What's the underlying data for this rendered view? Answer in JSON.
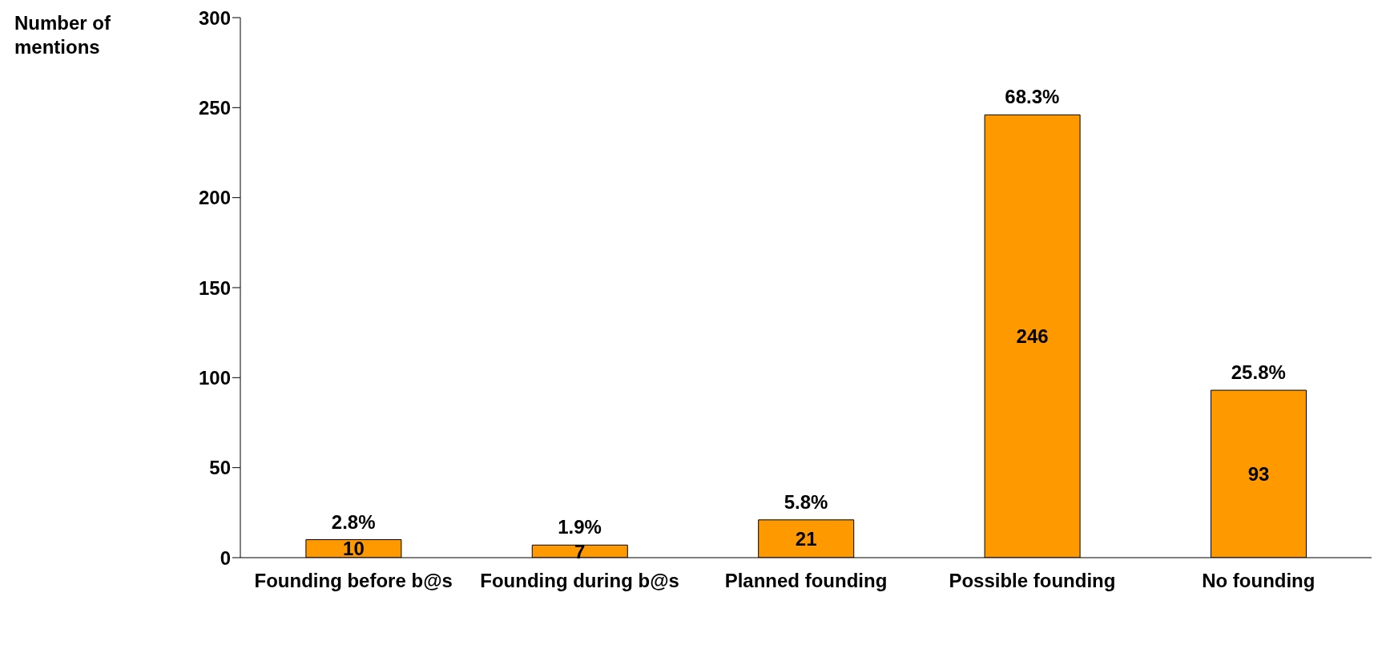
{
  "chart_data": {
    "type": "bar",
    "ylabel": "Number of mentions",
    "categories": [
      "Founding before b@s",
      "Founding during b@s",
      "Planned founding",
      "Possible founding",
      "No founding"
    ],
    "values": [
      10,
      7,
      21,
      246,
      93
    ],
    "color": "#ff9900",
    "ylim": [
      0,
      300
    ],
    "yticks": [
      0,
      50,
      100,
      150,
      200,
      250,
      300
    ],
    "grid": false,
    "data_labels": true,
    "annotations": [
      {
        "text": "2.8%",
        "x": "Founding before b@s",
        "y": 10
      },
      {
        "text": "1.9%",
        "x": "Founding during b@s",
        "y": 7
      },
      {
        "text": "5.8%",
        "x": "Planned founding",
        "y": 21
      },
      {
        "text": "68.3%",
        "x": "Possible founding",
        "y": 246
      },
      {
        "text": "25.8%",
        "x": "No founding",
        "y": 93
      }
    ]
  }
}
